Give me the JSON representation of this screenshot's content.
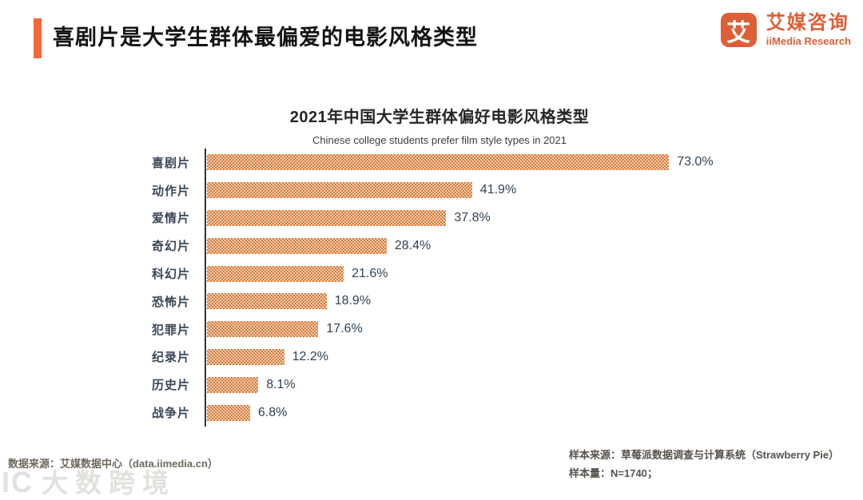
{
  "header": {
    "title": "喜剧片是大学生群体最偏爱的电影风格类型",
    "accent_color": "#F2673C",
    "logo": {
      "icon_char": "艾",
      "name_cn": "艾媒咨询",
      "name_en": "iiMedia Research",
      "color": "#DC5F38"
    }
  },
  "chart_data": {
    "type": "bar",
    "orientation": "horizontal",
    "title": "2021年中国大学生群体偏好电影风格类型",
    "subtitle": "Chinese college students prefer film style types in 2021",
    "categories": [
      "喜剧片",
      "动作片",
      "爱情片",
      "奇幻片",
      "科幻片",
      "恐怖片",
      "犯罪片",
      "纪录片",
      "历史片",
      "战争片"
    ],
    "values": [
      73.0,
      41.9,
      37.8,
      28.4,
      21.6,
      18.9,
      17.6,
      12.2,
      8.1,
      6.8
    ],
    "value_labels": [
      "73.0%",
      "41.9%",
      "37.8%",
      "28.4%",
      "21.6%",
      "18.9%",
      "17.6%",
      "12.2%",
      "8.1%",
      "6.8%"
    ],
    "xlim": [
      0,
      80
    ],
    "grid": false,
    "legend": "none",
    "bar_pattern_dark": "#D8773E",
    "bar_pattern_light": "#F3D2AC",
    "axis_color": "#2A3340",
    "label_color": "#3A4757",
    "value_color": "#2F4256"
  },
  "footer": {
    "data_source": "数据来源：艾媒数据中心（data.iimedia.cn）",
    "sample_source": "样本来源：草莓派数据调查与计算系统（Strawberry Pie）",
    "sample_size": "样本量：N=1740；",
    "watermark_mark": "IC",
    "watermark_text": "大数跨境"
  }
}
